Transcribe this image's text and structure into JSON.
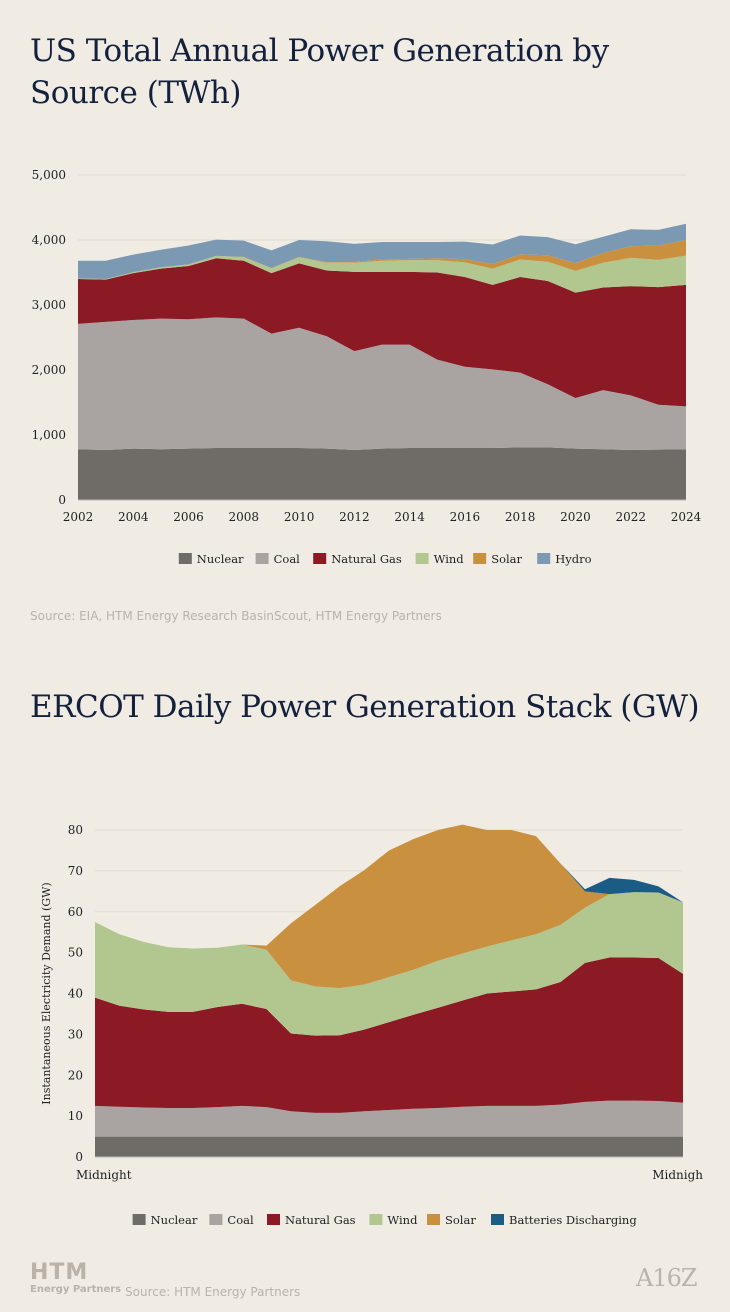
{
  "chart1": {
    "title": "US Total Annual Power Generation by Source (TWh)",
    "source": "Source: EIA, HTM Energy Research BasinScout, HTM Energy Partners",
    "chart_data": {
      "type": "area",
      "stacked": true,
      "x": [
        2002,
        2003,
        2004,
        2005,
        2006,
        2007,
        2008,
        2009,
        2010,
        2011,
        2012,
        2013,
        2014,
        2015,
        2016,
        2017,
        2018,
        2019,
        2020,
        2021,
        2022,
        2023,
        2024
      ],
      "x_ticks": [
        2002,
        2004,
        2006,
        2008,
        2010,
        2012,
        2014,
        2016,
        2018,
        2020,
        2022,
        2024
      ],
      "ylim": [
        0,
        5000
      ],
      "y_ticks": [
        0,
        1000,
        2000,
        3000,
        4000,
        5000
      ],
      "y_tick_labels": [
        "0",
        "1,000",
        "2,000",
        "3,000",
        "4,000",
        "5,000"
      ],
      "series": [
        {
          "name": "Nuclear",
          "color": "#6f6b67",
          "values": [
            780,
            770,
            790,
            780,
            790,
            800,
            800,
            800,
            800,
            790,
            770,
            790,
            800,
            800,
            800,
            800,
            810,
            810,
            790,
            780,
            770,
            775,
            780
          ]
        },
        {
          "name": "Coal",
          "color": "#a9a4a2",
          "values": [
            1930,
            1970,
            1980,
            2010,
            1990,
            2010,
            1990,
            1760,
            1850,
            1730,
            1520,
            1600,
            1590,
            1360,
            1250,
            1210,
            1150,
            970,
            780,
            910,
            840,
            690,
            660
          ]
        },
        {
          "name": "Natural Gas",
          "color": "#8b1a25",
          "values": [
            690,
            650,
            720,
            770,
            820,
            910,
            890,
            930,
            990,
            1010,
            1220,
            1120,
            1120,
            1340,
            1380,
            1300,
            1470,
            1590,
            1620,
            1580,
            1680,
            1810,
            1870
          ]
        },
        {
          "name": "Wind",
          "color": "#b2c790",
          "values": [
            10,
            10,
            15,
            20,
            25,
            35,
            55,
            75,
            95,
            120,
            140,
            170,
            180,
            190,
            225,
            250,
            270,
            295,
            335,
            380,
            435,
            420,
            450
          ]
        },
        {
          "name": "Solar",
          "color": "#c9913f",
          "values": [
            0,
            0,
            0,
            0,
            0,
            0,
            5,
            5,
            5,
            10,
            10,
            20,
            20,
            30,
            50,
            70,
            80,
            100,
            120,
            150,
            180,
            220,
            240
          ]
        },
        {
          "name": "Hydro",
          "color": "#7b99b2",
          "values": [
            270,
            280,
            270,
            270,
            290,
            250,
            250,
            270,
            260,
            320,
            280,
            270,
            260,
            250,
            270,
            300,
            290,
            280,
            290,
            250,
            260,
            240,
            250
          ]
        }
      ]
    }
  },
  "chart2": {
    "title": "ERCOT Daily Power Generation Stack (GW)",
    "source": "Source: HTM Energy Partners",
    "chart_data": {
      "type": "area",
      "stacked": true,
      "x": [
        0,
        1,
        2,
        3,
        4,
        5,
        6,
        7,
        8,
        9,
        10,
        11,
        12,
        13,
        14,
        15,
        16,
        17,
        18,
        19,
        20,
        21,
        22,
        23,
        24
      ],
      "x_tick_labels": [
        "Midnight",
        "Midnigh"
      ],
      "ylabel": "Instantaneous Electricity Demand (GW)",
      "ylim": [
        0,
        80
      ],
      "y_ticks": [
        0,
        10,
        20,
        30,
        40,
        50,
        60,
        70,
        80
      ],
      "series": [
        {
          "name": "Nuclear",
          "color": "#6f6b67",
          "values": [
            5,
            5,
            5,
            5,
            5,
            5,
            5,
            5,
            5,
            5,
            5,
            5,
            5,
            5,
            5,
            5,
            5,
            5,
            5,
            5,
            5,
            5,
            5,
            5,
            5
          ]
        },
        {
          "name": "Coal",
          "color": "#a9a4a2",
          "values": [
            7.5,
            7.3,
            7.1,
            7,
            7,
            7.2,
            7.5,
            7.2,
            6.2,
            5.8,
            5.8,
            6.2,
            6.5,
            6.8,
            7,
            7.3,
            7.5,
            7.5,
            7.5,
            7.8,
            8.5,
            8.8,
            8.8,
            8.7,
            8.3
          ]
        },
        {
          "name": "Natural Gas",
          "color": "#8b1a25",
          "values": [
            26.5,
            24.7,
            24,
            23.5,
            23.5,
            24.5,
            25,
            24,
            19,
            18.9,
            19,
            20,
            21.5,
            23,
            24.5,
            26,
            27.5,
            28,
            28.5,
            30,
            34,
            35,
            35,
            35,
            31.5
          ]
        },
        {
          "name": "Wind",
          "color": "#b2c790",
          "values": [
            18.5,
            17.5,
            16.5,
            15.8,
            15.5,
            14.5,
            14.5,
            14.5,
            13,
            12,
            11.5,
            11,
            11,
            11,
            11.5,
            11.5,
            11.5,
            12.5,
            13.5,
            14,
            13.5,
            15.5,
            16,
            16,
            17.5
          ]
        },
        {
          "name": "Solar",
          "color": "#c9913f",
          "values": [
            0,
            0,
            0,
            0,
            0,
            0,
            0,
            1,
            14,
            20,
            25,
            28,
            31,
            32,
            32,
            31.5,
            28.5,
            27,
            24,
            15,
            4,
            0,
            0,
            0,
            0
          ]
        },
        {
          "name": "Batteries Discharging",
          "color": "#1a5c83",
          "values": [
            0,
            0,
            0,
            0,
            0,
            0,
            0,
            0,
            0,
            0,
            0,
            0,
            0,
            0,
            0,
            0,
            0,
            0,
            0,
            0,
            0.5,
            4,
            3,
            1.5,
            0
          ]
        }
      ]
    }
  },
  "logos": {
    "htm_big": "HTM",
    "htm_small": "Energy Partners",
    "a16z": "A16Z"
  }
}
